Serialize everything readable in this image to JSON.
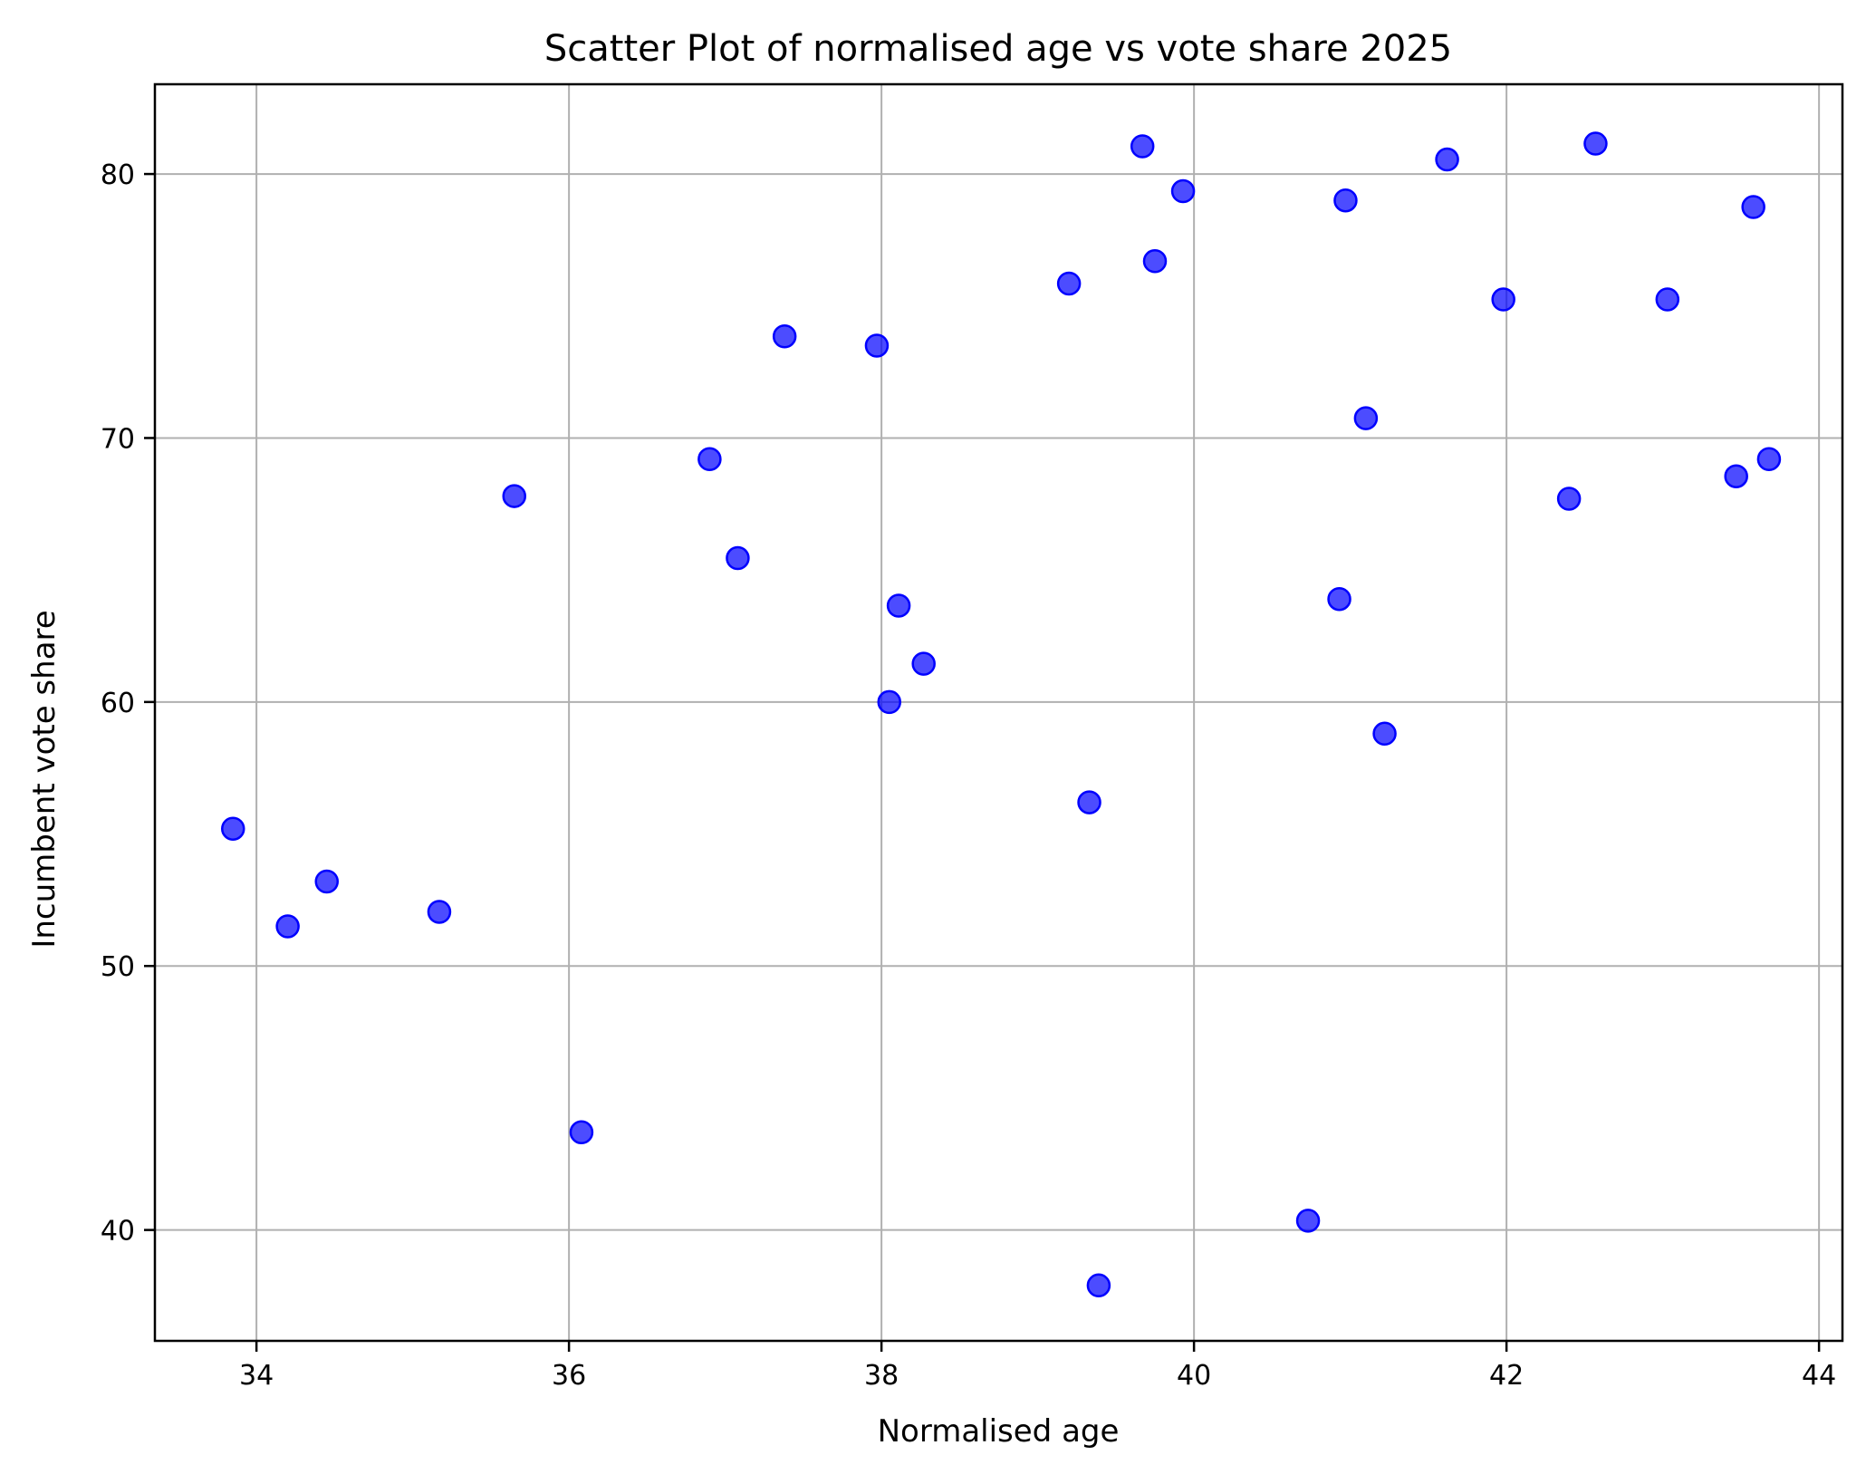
{
  "chart_data": {
    "type": "scatter",
    "title": "Scatter Plot of normalised age vs vote share 2025",
    "xlabel": "Normalised age",
    "ylabel": "Incumbent vote share",
    "xlim": [
      33.35,
      44.15
    ],
    "ylim": [
      35.8,
      83.4
    ],
    "xticks": [
      34,
      36,
      38,
      40,
      42,
      44
    ],
    "yticks": [
      40,
      50,
      60,
      70,
      80
    ],
    "grid": true,
    "marker_color": "#0000ff",
    "marker_alpha": 0.7,
    "points": [
      {
        "x": 33.85,
        "y": 55.2
      },
      {
        "x": 34.2,
        "y": 51.5
      },
      {
        "x": 34.45,
        "y": 53.2
      },
      {
        "x": 35.17,
        "y": 52.05
      },
      {
        "x": 35.65,
        "y": 67.8
      },
      {
        "x": 36.08,
        "y": 43.7
      },
      {
        "x": 36.9,
        "y": 69.2
      },
      {
        "x": 37.08,
        "y": 65.45
      },
      {
        "x": 37.38,
        "y": 73.85
      },
      {
        "x": 37.97,
        "y": 73.5
      },
      {
        "x": 38.05,
        "y": 60.0
      },
      {
        "x": 38.11,
        "y": 63.65
      },
      {
        "x": 38.27,
        "y": 61.45
      },
      {
        "x": 39.2,
        "y": 75.85
      },
      {
        "x": 39.33,
        "y": 56.2
      },
      {
        "x": 39.39,
        "y": 37.9
      },
      {
        "x": 39.67,
        "y": 81.05
      },
      {
        "x": 39.75,
        "y": 76.7
      },
      {
        "x": 39.93,
        "y": 79.35
      },
      {
        "x": 40.73,
        "y": 40.35
      },
      {
        "x": 40.93,
        "y": 63.9
      },
      {
        "x": 40.97,
        "y": 79.0
      },
      {
        "x": 41.1,
        "y": 70.75
      },
      {
        "x": 41.22,
        "y": 58.8
      },
      {
        "x": 41.62,
        "y": 80.55
      },
      {
        "x": 41.98,
        "y": 75.25
      },
      {
        "x": 42.4,
        "y": 67.7
      },
      {
        "x": 42.57,
        "y": 81.15
      },
      {
        "x": 43.03,
        "y": 75.25
      },
      {
        "x": 43.47,
        "y": 68.55
      },
      {
        "x": 43.58,
        "y": 78.75
      },
      {
        "x": 43.68,
        "y": 69.2
      }
    ]
  }
}
